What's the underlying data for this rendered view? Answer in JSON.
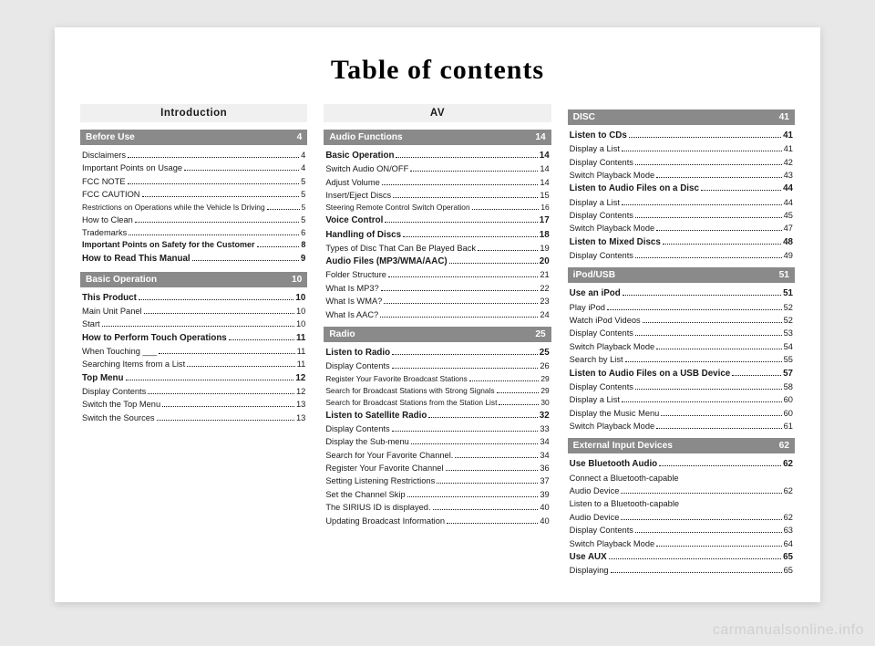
{
  "title": "Table of contents",
  "watermark": "carmanualsonline.info",
  "columns": [
    {
      "chapter": "Introduction",
      "sections": [
        {
          "name": "Before Use",
          "page": "4",
          "entries": [
            {
              "label": "Disclaimers",
              "page": "4"
            },
            {
              "label": "Important Points on Usage",
              "page": "4"
            },
            {
              "label": "FCC NOTE",
              "page": "5"
            },
            {
              "label": "FCC CAUTION",
              "page": "5"
            },
            {
              "label": "Restrictions on Operations while the Vehicle Is Driving",
              "page": "5",
              "small": true
            },
            {
              "label": "How to Clean",
              "page": "5"
            },
            {
              "label": "Trademarks",
              "page": "6"
            },
            {
              "label": "Important Points on Safety for the Customer",
              "page": "8",
              "bold": true,
              "small": true
            },
            {
              "label": "How to Read This Manual",
              "page": "9",
              "bold": true
            }
          ]
        },
        {
          "name": "Basic Operation",
          "page": "10",
          "entries": [
            {
              "label": "This Product",
              "page": "10",
              "bold": true
            },
            {
              "label": "Main Unit Panel",
              "page": "10"
            },
            {
              "label": "Start",
              "page": "10"
            },
            {
              "label": "How to Perform Touch Operations",
              "page": "11",
              "bold": true
            },
            {
              "label": "When Touching ___",
              "page": "11"
            },
            {
              "label": "Searching Items from a List",
              "page": "11"
            },
            {
              "label": "Top Menu",
              "page": "12",
              "bold": true
            },
            {
              "label": "Display Contents",
              "page": "12"
            },
            {
              "label": "Switch the Top Menu",
              "page": "13"
            },
            {
              "label": "Switch the Sources",
              "page": "13"
            }
          ]
        }
      ]
    },
    {
      "chapter": "AV",
      "sections": [
        {
          "name": "Audio Functions",
          "page": "14",
          "entries": [
            {
              "label": "Basic Operation",
              "page": "14",
              "bold": true
            },
            {
              "label": "Switch Audio ON/OFF",
              "page": "14"
            },
            {
              "label": "Adjust Volume",
              "page": "14"
            },
            {
              "label": "Insert/Eject Discs",
              "page": "15"
            },
            {
              "label": "Steering Remote Control Switch Operation",
              "page": "16",
              "small": true
            },
            {
              "label": "Voice Control",
              "page": "17",
              "bold": true
            },
            {
              "label": "Handling of Discs",
              "page": "18",
              "bold": true
            },
            {
              "label": "Types of Disc That Can Be Played Back",
              "page": "19"
            },
            {
              "label": "Audio Files (MP3/WMA/AAC)",
              "page": "20",
              "bold": true
            },
            {
              "label": "Folder Structure",
              "page": "21"
            },
            {
              "label": "What Is MP3?",
              "page": "22"
            },
            {
              "label": "What Is WMA?",
              "page": "23"
            },
            {
              "label": "What Is AAC?",
              "page": "24"
            }
          ]
        },
        {
          "name": "Radio",
          "page": "25",
          "entries": [
            {
              "label": "Listen to Radio",
              "page": "25",
              "bold": true
            },
            {
              "label": "Display Contents",
              "page": "26"
            },
            {
              "label": "Register Your Favorite Broadcast Stations",
              "page": "29",
              "small": true
            },
            {
              "label": "Search for Broadcast Stations with Strong Signals",
              "page": "29",
              "small": true
            },
            {
              "label": "Search for Broadcast Stations from the Station List",
              "page": "30",
              "small": true
            },
            {
              "label": "Listen to Satellite Radio",
              "page": "32",
              "bold": true
            },
            {
              "label": "Display Contents",
              "page": "33"
            },
            {
              "label": "Display the Sub-menu",
              "page": "34"
            },
            {
              "label": "Search for Your Favorite Channel.",
              "page": "34"
            },
            {
              "label": "Register Your Favorite Channel",
              "page": "36"
            },
            {
              "label": "Setting Listening Restrictions",
              "page": "37"
            },
            {
              "label": "Set the Channel Skip",
              "page": "39"
            },
            {
              "label": "The SIRIUS ID is displayed.",
              "page": "40"
            },
            {
              "label": "Updating Broadcast Information",
              "page": "40"
            }
          ]
        }
      ]
    },
    {
      "chapter": null,
      "sections": [
        {
          "name": "DISC",
          "page": "41",
          "entries": [
            {
              "label": "Listen to CDs",
              "page": "41",
              "bold": true
            },
            {
              "label": "Display a List",
              "page": "41"
            },
            {
              "label": "Display Contents",
              "page": "42"
            },
            {
              "label": "Switch Playback Mode",
              "page": "43"
            },
            {
              "label": "Listen to Audio Files on a Disc",
              "page": "44",
              "bold": true
            },
            {
              "label": "Display a List",
              "page": "44"
            },
            {
              "label": "Display Contents",
              "page": "45"
            },
            {
              "label": "Switch Playback Mode",
              "page": "47"
            },
            {
              "label": "Listen to Mixed Discs",
              "page": "48",
              "bold": true
            },
            {
              "label": "Display Contents",
              "page": "49"
            }
          ]
        },
        {
          "name": "iPod/USB",
          "page": "51",
          "entries": [
            {
              "label": "Use an iPod",
              "page": "51",
              "bold": true
            },
            {
              "label": "Play iPod",
              "page": "52"
            },
            {
              "label": "Watch iPod Videos",
              "page": "52"
            },
            {
              "label": "Display Contents",
              "page": "53"
            },
            {
              "label": "Switch Playback Mode",
              "page": "54"
            },
            {
              "label": "Search by List",
              "page": "55"
            },
            {
              "label": "Listen to Audio Files on a USB Device",
              "page": "57",
              "bold": true
            },
            {
              "label": "Display Contents",
              "page": "58"
            },
            {
              "label": "Display a List",
              "page": "60"
            },
            {
              "label": "Display the Music Menu",
              "page": "60"
            },
            {
              "label": "Switch Playback Mode",
              "page": "61"
            }
          ]
        },
        {
          "name": "External Input Devices",
          "page": "62",
          "entries": [
            {
              "label": "Use Bluetooth Audio",
              "page": "62",
              "bold": true
            },
            {
              "label": "Connect a Bluetooth-capable",
              "plain": true
            },
            {
              "label": "Audio Device",
              "page": "62"
            },
            {
              "label": "Listen to a Bluetooth-capable",
              "plain": true
            },
            {
              "label": "Audio Device",
              "page": "62"
            },
            {
              "label": "Display Contents",
              "page": "63"
            },
            {
              "label": "Switch Playback Mode",
              "page": "64"
            },
            {
              "label": "Use AUX",
              "page": "65",
              "bold": true
            },
            {
              "label": "Displaying",
              "page": "65"
            }
          ]
        }
      ]
    }
  ]
}
